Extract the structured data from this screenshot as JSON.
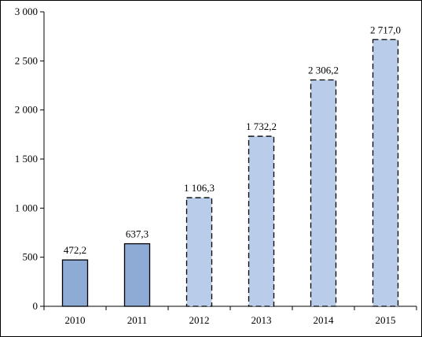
{
  "chart_data": {
    "type": "bar",
    "categories": [
      "2010",
      "2011",
      "2012",
      "2013",
      "2014",
      "2015"
    ],
    "values": [
      472.2,
      637.3,
      1106.3,
      1732.2,
      2306.2,
      2717.0
    ],
    "data_labels": [
      "472,2",
      "637,3",
      "1 106,3",
      "1 732,2",
      "2 306,2",
      "2 717,0"
    ],
    "projected": [
      false,
      false,
      true,
      true,
      true,
      true
    ],
    "title": "",
    "xlabel": "",
    "ylabel": "",
    "ylim": [
      0,
      3000
    ],
    "yticks": [
      0,
      500,
      1000,
      1500,
      2000,
      2500,
      3000
    ],
    "ytick_labels": [
      "0",
      "500",
      "1 000",
      "1 500",
      "2 000",
      "2 500",
      "3 000"
    ],
    "grid": false,
    "legend": "none",
    "colors": {
      "actual_fill": "#8eabd6",
      "projected_fill": "#b9cdea",
      "outline": "#000000"
    }
  }
}
